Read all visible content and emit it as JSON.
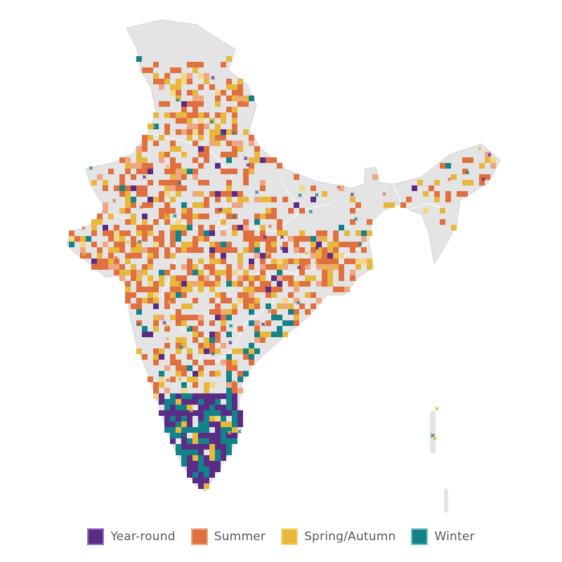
{
  "legend": {
    "items": [
      {
        "key": "year_round",
        "label": "Year-round",
        "color": "#5b2c86",
        "border": "#9575c0"
      },
      {
        "key": "summer",
        "label": "Summer",
        "color": "#e07040",
        "border": "#f0a585"
      },
      {
        "key": "spring_autumn",
        "label": "Spring/Autumn",
        "color": "#e8b83c",
        "border": "#f2d585"
      },
      {
        "key": "winter",
        "label": "Winter",
        "color": "#13838a",
        "border": "#75c0c4"
      }
    ]
  },
  "map": {
    "land_color": "#e4e4e4",
    "border_color": "#ffffff"
  }
}
